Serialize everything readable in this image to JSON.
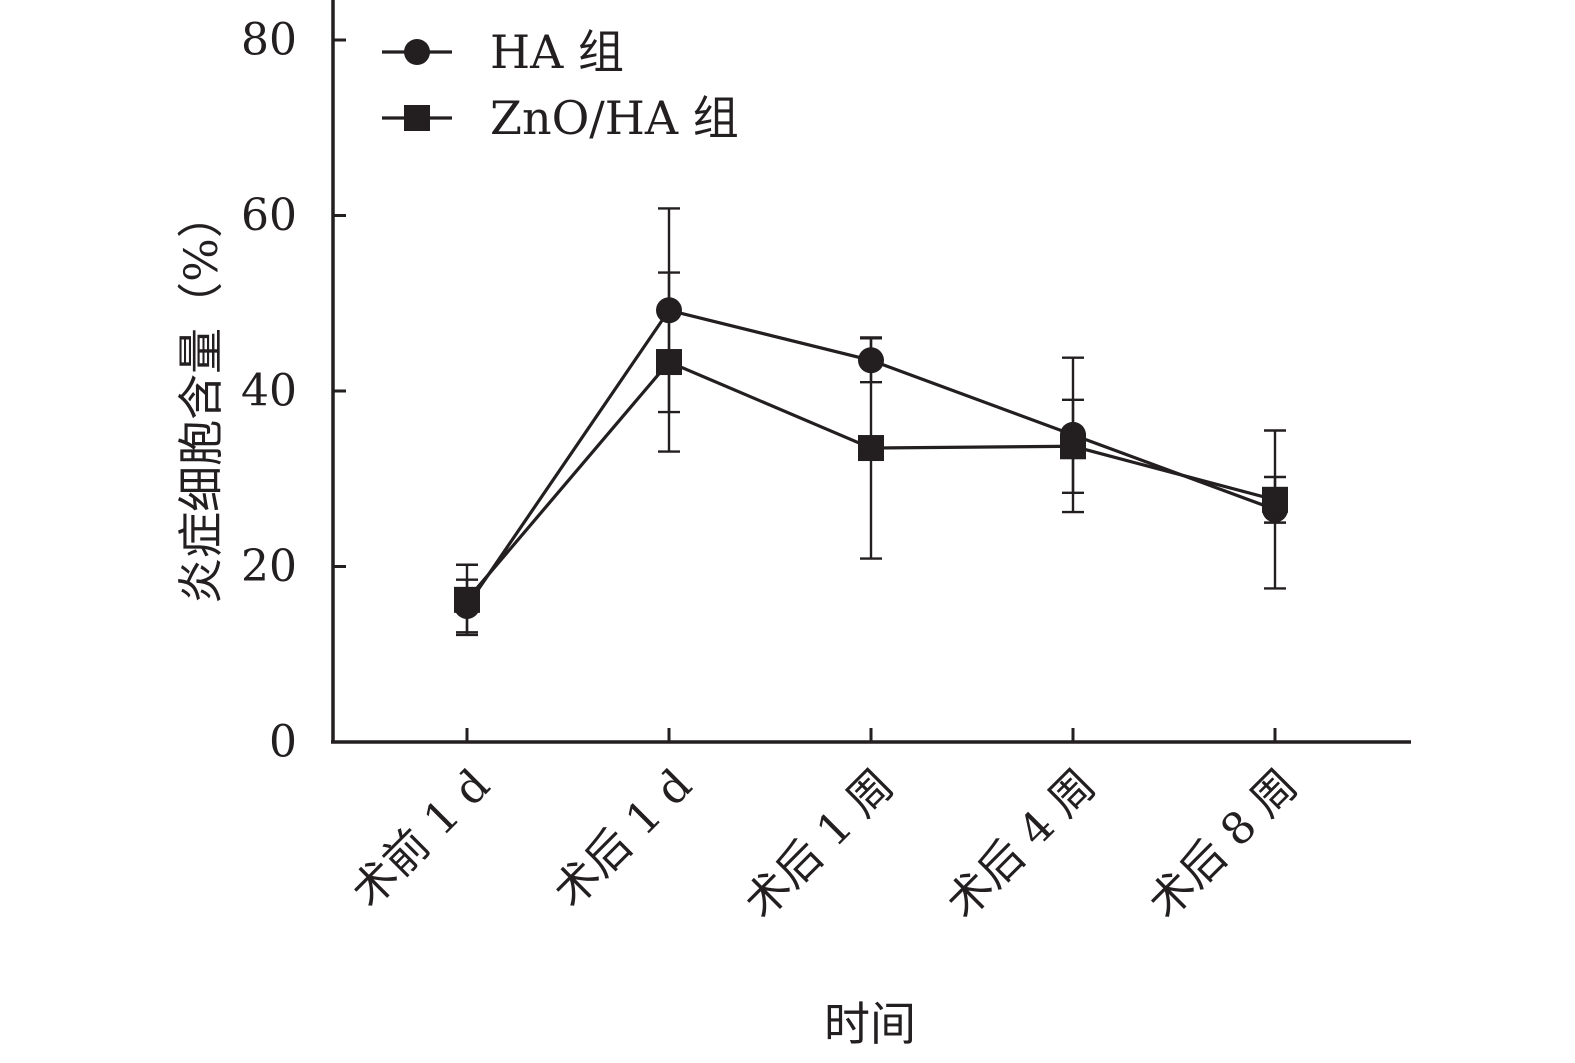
{
  "chart_data": {
    "type": "line",
    "title": "",
    "xlabel": "时间",
    "ylabel": "炎症细胞含量（%）",
    "ylim": [
      0,
      80
    ],
    "yticks": [
      0,
      20,
      40,
      60,
      80
    ],
    "categories": [
      "术前 1 d",
      "术后 1 d",
      "术后 1 周",
      "术后 4 周",
      "术后 8 周"
    ],
    "legend_position": "top-left",
    "grid": false,
    "series": [
      {
        "name": "HA 组",
        "marker": "circle",
        "color": "#231f20",
        "values": [
          15.5,
          49.2,
          43.5,
          35.0,
          26.5
        ],
        "error": [
          3.0,
          11.6,
          2.5,
          8.8,
          9.0
        ]
      },
      {
        "name": "ZnO/HA 组",
        "marker": "square",
        "color": "#231f20",
        "values": [
          16.2,
          43.3,
          33.5,
          33.7,
          27.6
        ],
        "error": [
          4.0,
          10.2,
          12.6,
          5.3,
          2.6
        ]
      }
    ]
  }
}
